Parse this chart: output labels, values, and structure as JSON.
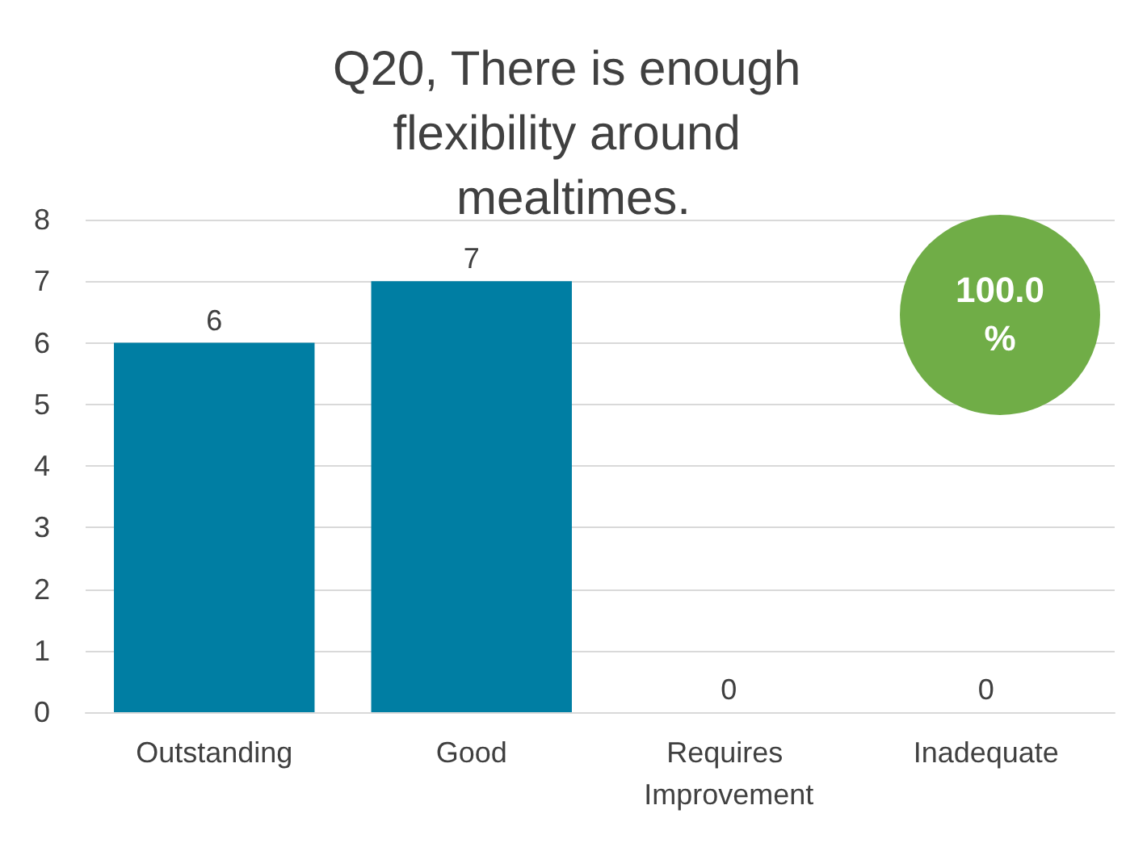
{
  "chart_data": {
    "type": "bar",
    "title": "Q20, There is enough flexibility around mealtimes.",
    "categories": [
      "Outstanding",
      "Good",
      "Requires Improvement",
      "Inadequate"
    ],
    "values": [
      6,
      7,
      0,
      0
    ],
    "color": "#007ea3",
    "ylim": [
      0,
      8
    ],
    "yticks": [
      0,
      1,
      2,
      3,
      4,
      5,
      6,
      7,
      8
    ],
    "grid": "y",
    "data_labels": true,
    "annotations": [
      "100.0 %"
    ]
  }
}
